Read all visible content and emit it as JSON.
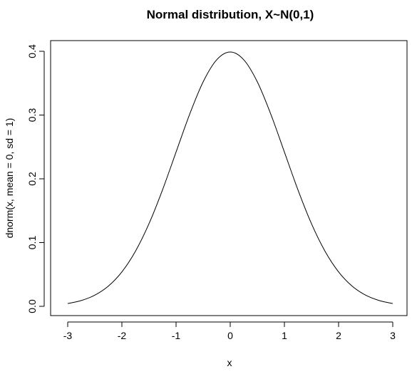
{
  "chart_data": {
    "type": "line",
    "title": "Normal distribution, X~N(0,1)",
    "xlabel": "x",
    "ylabel": "dnorm(x, mean = 0, sd = 1)",
    "xlim": [
      -3,
      3
    ],
    "ylim": [
      0,
      0.4
    ],
    "grid": false,
    "legend": "none",
    "line_color": "#000000",
    "x_ticks": [
      -3,
      -2,
      -1,
      0,
      1,
      2,
      3
    ],
    "x_tick_labels": [
      "-3",
      "-2",
      "-1",
      "0",
      "1",
      "2",
      "3"
    ],
    "y_ticks": [
      0.0,
      0.1,
      0.2,
      0.3,
      0.4
    ],
    "y_tick_labels": [
      "0.0",
      "0.1",
      "0.2",
      "0.3",
      "0.4"
    ],
    "series": [
      {
        "x": [
          -3.0,
          -2.75,
          -2.5,
          -2.25,
          -2.0,
          -1.75,
          -1.5,
          -1.25,
          -1.0,
          -0.75,
          -0.5,
          -0.25,
          0.0,
          0.25,
          0.5,
          0.75,
          1.0,
          1.25,
          1.5,
          1.75,
          2.0,
          2.25,
          2.5,
          2.75,
          3.0
        ],
        "y": [
          0.0044,
          0.0091,
          0.0175,
          0.0317,
          0.054,
          0.0863,
          0.1295,
          0.1826,
          0.242,
          0.3011,
          0.3521,
          0.3867,
          0.3989,
          0.3867,
          0.3521,
          0.3011,
          0.242,
          0.1826,
          0.1295,
          0.0863,
          0.054,
          0.0317,
          0.0175,
          0.0091,
          0.0044
        ]
      }
    ]
  }
}
